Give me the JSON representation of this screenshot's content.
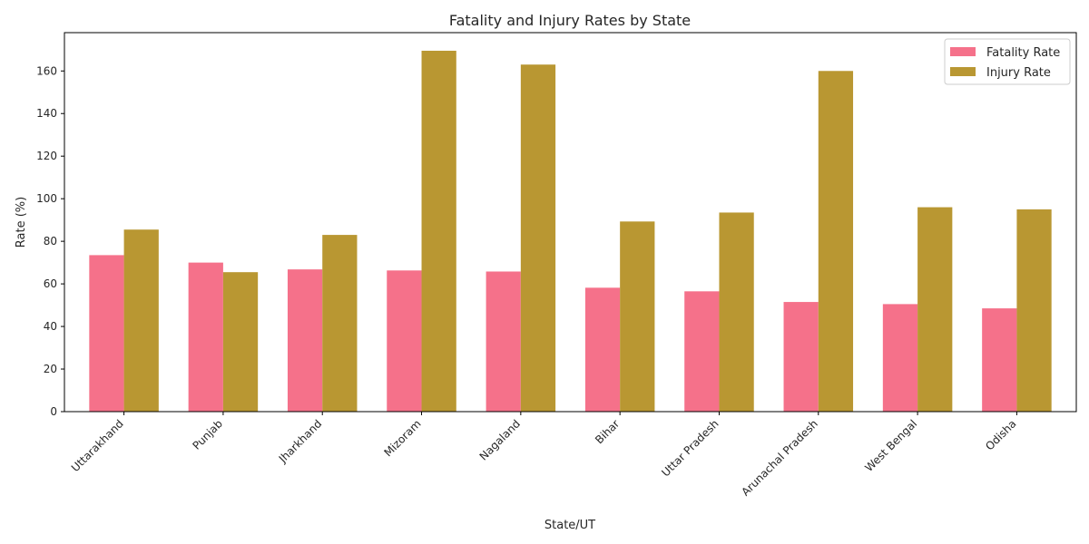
{
  "chart_data": {
    "type": "bar",
    "title": "Fatality and Injury Rates by State",
    "xlabel": "State/UT",
    "ylabel": "Rate (%)",
    "ylim": [
      0,
      178
    ],
    "yticks": [
      0,
      20,
      40,
      60,
      80,
      100,
      120,
      140,
      160
    ],
    "categories": [
      "Uttarakhand",
      "Punjab",
      "Jharkhand",
      "Mizoram",
      "Nagaland",
      "Bihar",
      "Uttar Pradesh",
      "Arunachal Pradesh",
      "West Bengal",
      "Odisha"
    ],
    "series": [
      {
        "name": "Fatality Rate",
        "color": "#f5718a",
        "values": [
          73.5,
          70.0,
          66.8,
          66.3,
          65.8,
          58.2,
          56.5,
          51.5,
          50.5,
          48.5
        ]
      },
      {
        "name": "Injury Rate",
        "color": "#b99732",
        "values": [
          85.5,
          65.5,
          83.0,
          169.5,
          163.0,
          89.3,
          93.5,
          160.0,
          96.0,
          95.0
        ]
      }
    ],
    "legend": "top-right",
    "grid": false
  }
}
